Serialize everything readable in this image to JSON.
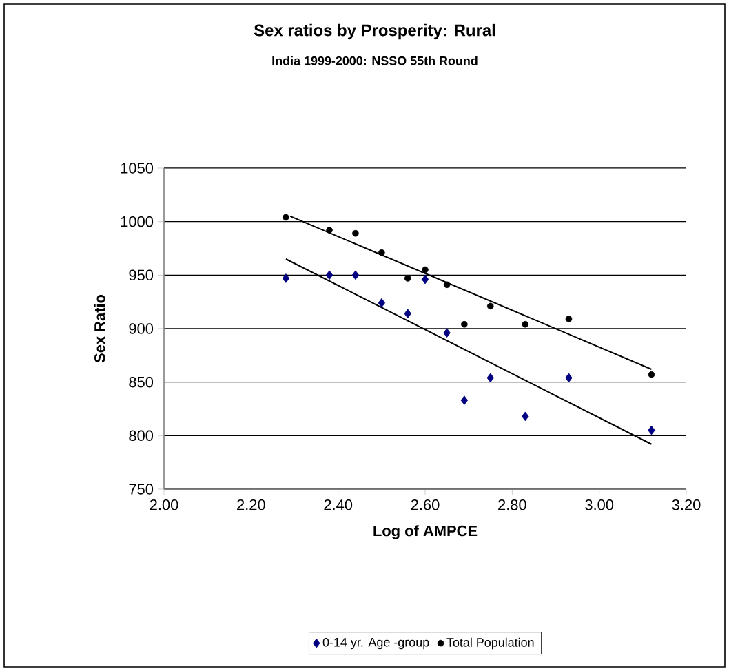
{
  "chart_data": {
    "type": "scatter",
    "title": "Sex ratios by Prosperity: Rural",
    "subtitle": "India 1999-2000: NSSO 55th Round",
    "xlabel": "Log of AMPCE",
    "ylabel": "Sex Ratio",
    "xlim": [
      2.0,
      3.2
    ],
    "ylim": [
      750,
      1050
    ],
    "xticks": [
      {
        "value": 2.0,
        "label": "2.00"
      },
      {
        "value": 2.2,
        "label": "2.20"
      },
      {
        "value": 2.4,
        "label": "2.40"
      },
      {
        "value": 2.6,
        "label": "2.60"
      },
      {
        "value": 2.8,
        "label": "2.80"
      },
      {
        "value": 3.0,
        "label": "3.00"
      },
      {
        "value": 3.2,
        "label": "3.20"
      }
    ],
    "yticks": [
      750,
      800,
      850,
      900,
      950,
      1000,
      1050
    ],
    "grid": "y",
    "legend": "bottom",
    "series": [
      {
        "name": "0-14 yr. Age -group",
        "marker": "diamond",
        "color": "#000080",
        "x": [
          2.28,
          2.38,
          2.44,
          2.5,
          2.56,
          2.6,
          2.65,
          2.69,
          2.75,
          2.83,
          2.93,
          3.12
        ],
        "values": [
          947,
          950,
          950,
          924,
          914,
          946,
          896,
          833,
          854,
          818,
          854,
          805
        ]
      },
      {
        "name": "Total Population",
        "marker": "circle",
        "color": "#000000",
        "x": [
          2.28,
          2.38,
          2.44,
          2.5,
          2.56,
          2.6,
          2.65,
          2.69,
          2.75,
          2.83,
          2.93,
          3.12
        ],
        "values": [
          1004,
          992,
          989,
          971,
          947,
          955,
          941,
          904,
          921,
          904,
          909,
          857
        ]
      },
      {
        "type": "line",
        "color": "#000000",
        "x": [
          2.28,
          3.12
        ],
        "values": [
          965,
          792
        ]
      },
      {
        "type": "line",
        "color": "#000000",
        "x": [
          2.29,
          3.12
        ],
        "values": [
          1005,
          862
        ]
      }
    ]
  }
}
